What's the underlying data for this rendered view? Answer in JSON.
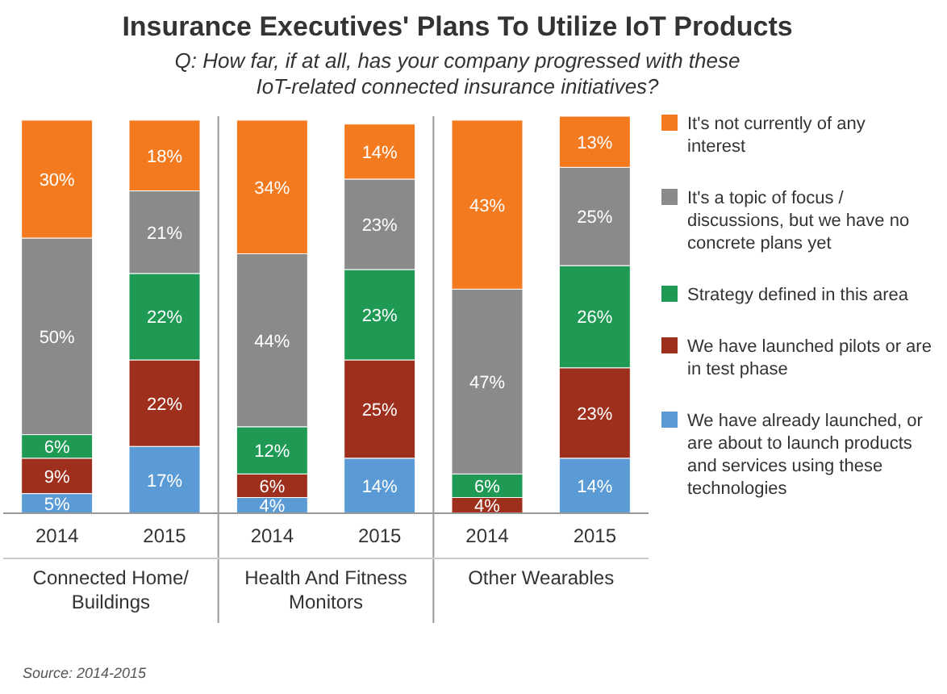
{
  "chart_data": {
    "type": "bar",
    "stacked": true,
    "title": "Insurance Executives' Plans To Utilize IoT Products",
    "subtitle": "Q: How far, if at all, has your company progressed with these IoT-related connected insurance initiatives?",
    "categories": [
      "2014",
      "2015",
      "2014",
      "2015",
      "2014",
      "2015"
    ],
    "series": [
      {
        "name": "We have already launched, or are about to launch products and services using these technologies",
        "color": "#5b9bd5",
        "values": [
          5,
          17,
          4,
          14,
          0,
          14
        ],
        "value_labels": [
          "5%",
          "17%",
          "4%",
          "14%",
          null,
          "14%"
        ]
      },
      {
        "name": "We have launched pilots or are in test phase",
        "color": "#9e2f1c",
        "values": [
          9,
          22,
          6,
          25,
          4,
          23
        ],
        "value_labels": [
          "9%",
          "22%",
          "6%",
          "25%",
          "4%",
          "23%"
        ]
      },
      {
        "name": "Strategy defined in this area",
        "color": "#1e9a55",
        "values": [
          6,
          22,
          12,
          23,
          6,
          26
        ],
        "value_labels": [
          "6%",
          "22%",
          "12%",
          "23%",
          "6%",
          "26%"
        ]
      },
      {
        "name": "It's a topic of focus / discussions, but we have no concrete plans yet",
        "color": "#8a8a8a",
        "values": [
          50,
          21,
          44,
          23,
          47,
          25
        ],
        "value_labels": [
          "50%",
          "21%",
          "44%",
          "23%",
          "47%",
          "25%"
        ]
      },
      {
        "name": "It's not currently of any interest",
        "color": "#f47a1f",
        "values": [
          30,
          18,
          34,
          14,
          43,
          13
        ],
        "value_labels": [
          "30%",
          "18%",
          "34%",
          "14%",
          "43%",
          "13%"
        ]
      }
    ],
    "annotations": [
      "Connected Home/ Buildings",
      "Health And Fitness Monitors",
      "Other Wearables",
      "Source: 2014-2015"
    ],
    "legend": "right"
  }
}
